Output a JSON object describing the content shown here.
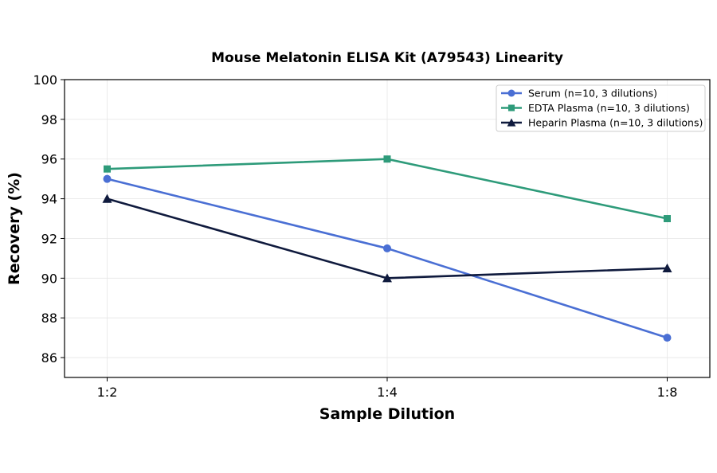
{
  "chart_data": {
    "type": "line",
    "title": "Mouse Melatonin ELISA Kit (A79543) Linearity",
    "xlabel": "Sample Dilution",
    "ylabel": "Recovery (%)",
    "categories": [
      "1:2",
      "1:4",
      "1:8"
    ],
    "ylim": [
      85,
      100
    ],
    "yticks": [
      86,
      88,
      90,
      92,
      94,
      96,
      98,
      100
    ],
    "grid": true,
    "legend_position": "top-right",
    "series": [
      {
        "name": "Serum (n=10, 3 dilutions)",
        "values": [
          95,
          91.5,
          87
        ],
        "color": "#4a6fd4",
        "marker": "circle"
      },
      {
        "name": "EDTA Plasma (n=10, 3 dilutions)",
        "values": [
          95.5,
          96,
          93
        ],
        "color": "#2e9b7a",
        "marker": "square"
      },
      {
        "name": "Heparin Plasma (n=10, 3 dilutions)",
        "values": [
          94,
          90,
          90.5
        ],
        "color": "#0f1a3d",
        "marker": "triangle"
      }
    ]
  }
}
